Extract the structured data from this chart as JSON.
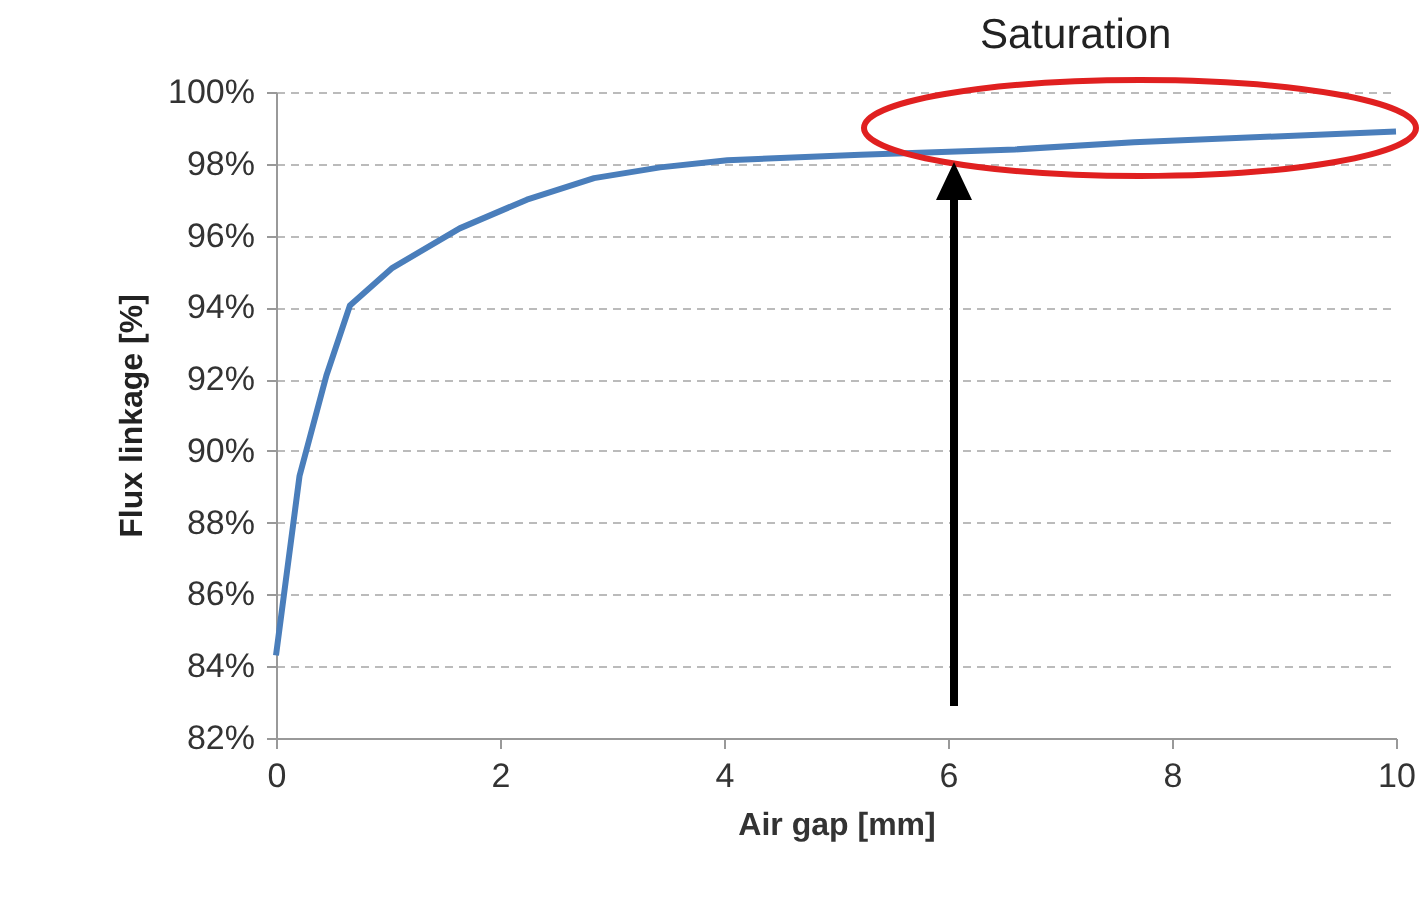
{
  "chart_data": {
    "type": "line",
    "xlabel": "Air gap [mm]",
    "ylabel": "Flux linkage [%]",
    "annotations": [
      "Saturation"
    ],
    "x": [
      0,
      0.21,
      0.45,
      0.66,
      1.04,
      1.64,
      2.24,
      2.84,
      3.43,
      4.03,
      5.22,
      6.6,
      7.66,
      10
    ],
    "series": [
      {
        "color": "#4a7ebb",
        "values": [
          84.3,
          89.3,
          92.1,
          94.05,
          95.1,
          96.2,
          97.0,
          97.6,
          97.9,
          98.1,
          98.25,
          98.4,
          98.6,
          98.9
        ]
      }
    ],
    "xlim": [
      0,
      10
    ],
    "xticks": [
      0,
      2,
      4,
      6,
      8,
      10
    ],
    "ylim": [
      82,
      100
    ],
    "yticks": [
      {
        "value": 82,
        "label": "82%"
      },
      {
        "value": 84,
        "label": "84%"
      },
      {
        "value": 86,
        "label": "86%"
      },
      {
        "value": 88,
        "label": "88%"
      },
      {
        "value": 90,
        "label": "90%"
      },
      {
        "value": 92,
        "label": "92%"
      },
      {
        "value": 94,
        "label": "94%"
      },
      {
        "value": 96,
        "label": "96%"
      },
      {
        "value": 98,
        "label": "98%"
      },
      {
        "value": 100,
        "label": "100%"
      }
    ],
    "grid": "y",
    "marker": "none",
    "line_style": "solid"
  }
}
